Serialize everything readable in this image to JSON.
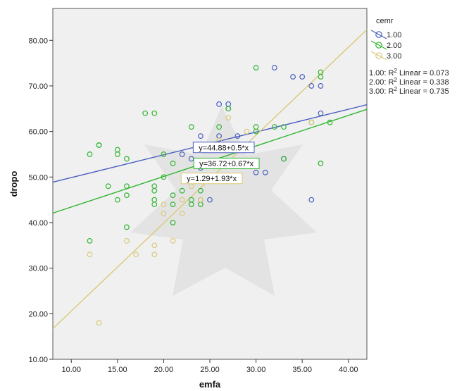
{
  "chart_data": {
    "type": "scatter",
    "xlabel": "emfa",
    "ylabel": "dropo",
    "xlim": [
      8,
      42
    ],
    "ylim": [
      10,
      87
    ],
    "x_ticks": [
      "10.00",
      "15.00",
      "20.00",
      "25.00",
      "30.00",
      "35.00",
      "40.00"
    ],
    "y_ticks": [
      "10.00",
      "20.00",
      "30.00",
      "40.00",
      "50.00",
      "60.00",
      "70.00",
      "80.00"
    ],
    "legend": {
      "title": "cemr",
      "position": "right",
      "entries": [
        "1.00",
        "2.00",
        "3.00"
      ],
      "r2_label_prefix": [
        "1.00: R",
        "2.00: R",
        "3.00: R"
      ],
      "r2_label_suffix": [
        " Linear = 0.073",
        " Linear = 0.338",
        " Linear = 0.735"
      ]
    },
    "series": [
      {
        "name": "1.00",
        "color": "#4a5fbf",
        "fit": {
          "intercept": 44.88,
          "slope": 0.5,
          "label": "y=44.88+0.5*x",
          "label_at": [
            26.5,
            56.5
          ]
        },
        "points": [
          [
            22,
            55
          ],
          [
            23,
            54
          ],
          [
            24,
            59
          ],
          [
            24,
            57
          ],
          [
            24,
            52
          ],
          [
            25,
            45
          ],
          [
            26,
            66
          ],
          [
            26,
            59
          ],
          [
            27,
            66
          ],
          [
            27,
            65
          ],
          [
            28,
            59
          ],
          [
            30,
            51
          ],
          [
            31,
            51
          ],
          [
            32,
            74
          ],
          [
            33,
            54
          ],
          [
            34,
            72
          ],
          [
            35,
            72
          ],
          [
            36,
            70
          ],
          [
            36,
            45
          ],
          [
            37,
            70
          ],
          [
            37,
            64
          ]
        ]
      },
      {
        "name": "2.00",
        "color": "#2fb52f",
        "fit": {
          "intercept": 36.72,
          "slope": 0.67,
          "label": "y=36.72+0.67*x",
          "label_at": [
            26.8,
            53
          ]
        },
        "points": [
          [
            12,
            36
          ],
          [
            12,
            55
          ],
          [
            13,
            57
          ],
          [
            13,
            57
          ],
          [
            14,
            48
          ],
          [
            15,
            56
          ],
          [
            15,
            55
          ],
          [
            15,
            45
          ],
          [
            16,
            54
          ],
          [
            16,
            48
          ],
          [
            16,
            46
          ],
          [
            16,
            39
          ],
          [
            18,
            64
          ],
          [
            19,
            64
          ],
          [
            19,
            48
          ],
          [
            19,
            47
          ],
          [
            19,
            45
          ],
          [
            19,
            44
          ],
          [
            20,
            55
          ],
          [
            20,
            50
          ],
          [
            21,
            53
          ],
          [
            21,
            46
          ],
          [
            21,
            44
          ],
          [
            21,
            40
          ],
          [
            22,
            47
          ],
          [
            23,
            61
          ],
          [
            23,
            45
          ],
          [
            23,
            44
          ],
          [
            24,
            47
          ],
          [
            24,
            45
          ],
          [
            24,
            44
          ],
          [
            26,
            61
          ],
          [
            27,
            65
          ],
          [
            30,
            74
          ],
          [
            30,
            61
          ],
          [
            30,
            60
          ],
          [
            32,
            61
          ],
          [
            33,
            61
          ],
          [
            33,
            54
          ],
          [
            36,
            62
          ],
          [
            37,
            73
          ],
          [
            37,
            72
          ],
          [
            37,
            53
          ],
          [
            38,
            62
          ]
        ]
      },
      {
        "name": "3.00",
        "color": "#d9c97a",
        "fit": {
          "intercept": 1.29,
          "slope": 1.93,
          "label": "y=1.29+1.93*x",
          "label_at": [
            25.2,
            49.7
          ]
        },
        "points": [
          [
            12,
            33
          ],
          [
            13,
            18
          ],
          [
            16,
            36
          ],
          [
            17,
            33
          ],
          [
            19,
            35
          ],
          [
            19,
            33
          ],
          [
            20,
            44
          ],
          [
            20,
            42
          ],
          [
            21,
            36
          ],
          [
            22,
            45
          ],
          [
            22,
            42
          ],
          [
            23,
            48
          ],
          [
            24,
            45
          ],
          [
            26,
            58
          ],
          [
            27,
            63
          ],
          [
            29,
            60
          ],
          [
            36,
            62
          ]
        ]
      }
    ]
  }
}
